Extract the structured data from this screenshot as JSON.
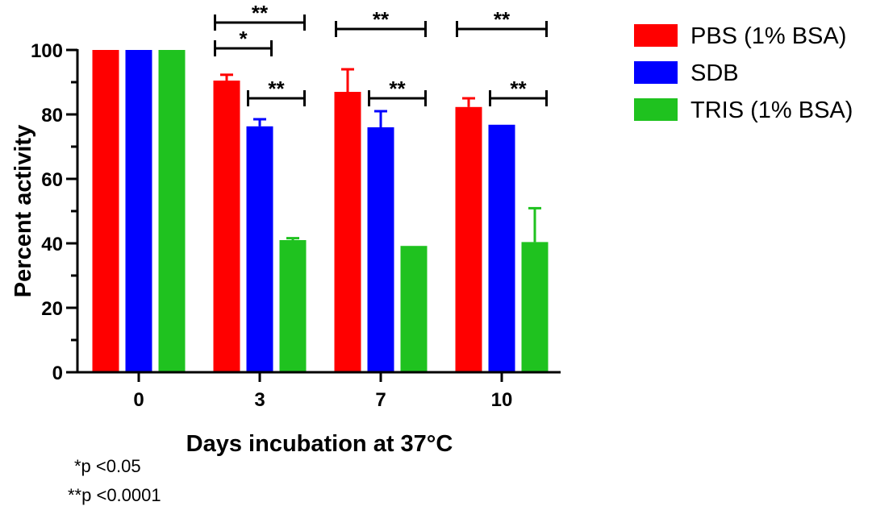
{
  "chart_data": {
    "type": "bar",
    "title": "",
    "xlabel": "Days incubation at 37°C",
    "ylabel": "Percent activity",
    "ylim": [
      0,
      100
    ],
    "yticks": [
      0,
      20,
      40,
      60,
      80,
      100
    ],
    "categories": [
      "0",
      "3",
      "7",
      "10"
    ],
    "grid": false,
    "legend_position": "top-right",
    "series": [
      {
        "name": "PBS (1% BSA)",
        "color": "#ff0000",
        "values": [
          100,
          90.5,
          87,
          82.3
        ],
        "errors": [
          0,
          1.8,
          7,
          2.7
        ]
      },
      {
        "name": "SDB",
        "color": "#0000ff",
        "values": [
          100,
          76.3,
          76,
          76.8
        ],
        "errors": [
          0,
          2.2,
          5,
          0
        ]
      },
      {
        "name": "TRIS (1% BSA)",
        "color": "#1fc21f",
        "values": [
          100,
          41,
          39.2,
          40.4
        ],
        "errors": [
          0,
          0.6,
          0,
          10.5
        ]
      }
    ],
    "significance": [
      {
        "category": "3",
        "from_series": 0,
        "to_series": 2,
        "level": 108.5,
        "label": "**"
      },
      {
        "category": "3",
        "from_series": 0,
        "to_series": 1,
        "level": 100.5,
        "label": "*"
      },
      {
        "category": "3",
        "from_series": 1,
        "to_series": 2,
        "level": 85,
        "label": "**"
      },
      {
        "category": "7",
        "from_series": 0,
        "to_series": 2,
        "level": 106.5,
        "label": "**"
      },
      {
        "category": "7",
        "from_series": 1,
        "to_series": 2,
        "level": 85,
        "label": "**"
      },
      {
        "category": "10",
        "from_series": 0,
        "to_series": 2,
        "level": 106.5,
        "label": "**"
      },
      {
        "category": "10",
        "from_series": 1,
        "to_series": 2,
        "level": 85,
        "label": "**"
      }
    ]
  },
  "notes": [
    "*p <0.05",
    "**p <0.0001"
  ]
}
